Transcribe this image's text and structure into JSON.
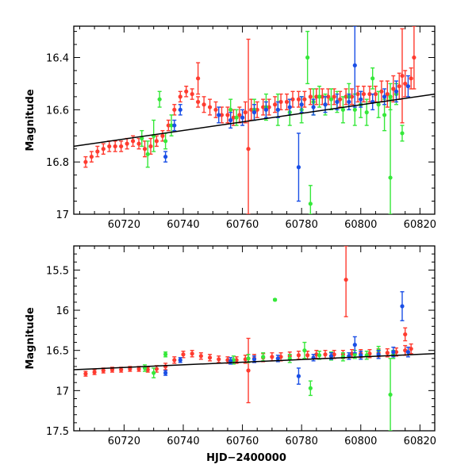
{
  "chart_data": [
    {
      "type": "scatter",
      "panel": "top",
      "title": "",
      "xlabel": "",
      "ylabel": "Magnitude",
      "xlim": [
        60703,
        60825
      ],
      "ylim": [
        17.0,
        16.28
      ],
      "y_inverted": true,
      "grid": false,
      "x_ticks": [
        60720,
        60740,
        60760,
        60780,
        60800,
        60820
      ],
      "y_ticks": [
        16.4,
        16.6,
        16.8,
        17.0
      ],
      "y_tick_labels": [
        "16.4",
        "16.6",
        "16.8",
        "17"
      ],
      "fit_line": {
        "x": [
          60703,
          60825
        ],
        "y": [
          16.74,
          16.54
        ],
        "color": "#000000"
      },
      "series": [
        {
          "color": "#ff3b2f",
          "x": [
            60707,
            60709,
            60711,
            60713,
            60715,
            60717,
            60719,
            60721,
            60723,
            60725,
            60727,
            60729,
            60731,
            60733,
            60735,
            60737,
            60739,
            60741,
            60743,
            60745,
            60747,
            60749,
            60751,
            60753,
            60755,
            60757,
            60759,
            60761,
            60763,
            60765,
            60767,
            60769,
            60771,
            60773,
            60775,
            60777,
            60779,
            60781,
            60783,
            60785,
            60787,
            60789,
            60791,
            60793,
            60795,
            60797,
            60799,
            60801,
            60803,
            60805,
            60807,
            60809,
            60811,
            60813,
            60815,
            60817
          ],
          "y": [
            16.8,
            16.78,
            16.76,
            16.75,
            16.74,
            16.74,
            16.74,
            16.73,
            16.72,
            16.73,
            16.75,
            16.74,
            16.72,
            16.7,
            16.66,
            16.6,
            16.55,
            16.53,
            16.54,
            16.57,
            16.58,
            16.59,
            16.6,
            16.62,
            16.62,
            16.63,
            16.62,
            16.61,
            16.6,
            16.6,
            16.59,
            16.59,
            16.58,
            16.57,
            16.57,
            16.56,
            16.56,
            16.56,
            16.55,
            16.55,
            16.55,
            16.55,
            16.55,
            16.56,
            16.55,
            16.55,
            16.54,
            16.54,
            16.54,
            16.54,
            16.53,
            16.54,
            16.52,
            16.51,
            16.5,
            16.48
          ],
          "yerr": [
            0.02,
            0.02,
            0.02,
            0.02,
            0.02,
            0.02,
            0.02,
            0.02,
            0.02,
            0.02,
            0.03,
            0.03,
            0.02,
            0.02,
            0.02,
            0.02,
            0.02,
            0.02,
            0.02,
            0.02,
            0.03,
            0.03,
            0.03,
            0.03,
            0.03,
            0.03,
            0.03,
            0.04,
            0.04,
            0.03,
            0.03,
            0.03,
            0.03,
            0.03,
            0.03,
            0.03,
            0.03,
            0.03,
            0.03,
            0.03,
            0.03,
            0.03,
            0.03,
            0.03,
            0.03,
            0.03,
            0.03,
            0.03,
            0.03,
            0.03,
            0.04,
            0.05,
            0.05,
            0.05,
            0.05,
            0.04
          ]
        },
        {
          "color": "#ff3b2f",
          "x": [
            60745,
            60762,
            60814,
            60818
          ],
          "y": [
            16.48,
            16.75,
            16.47,
            16.4
          ],
          "yerr": [
            0.06,
            0.42,
            0.18,
            0.12
          ]
        },
        {
          "color": "#36e83a",
          "x": [
            60726,
            60728,
            60730,
            60732,
            60734,
            60736,
            60756,
            60758,
            60764,
            60768,
            60772,
            60776,
            60780,
            60782,
            60784,
            60786,
            60788,
            60790,
            60792,
            60794,
            60796,
            60798,
            60800,
            60802,
            60804,
            60806,
            60808,
            60810,
            60812,
            60814
          ],
          "y": [
            16.71,
            16.77,
            16.7,
            16.56,
            16.72,
            16.66,
            16.6,
            16.63,
            16.6,
            16.59,
            16.6,
            16.61,
            16.6,
            16.4,
            16.57,
            16.55,
            16.58,
            16.56,
            16.57,
            16.6,
            16.55,
            16.6,
            16.58,
            16.61,
            16.48,
            16.58,
            16.62,
            16.55,
            16.54,
            16.69
          ],
          "yerr": [
            0.03,
            0.05,
            0.06,
            0.03,
            0.03,
            0.04,
            0.04,
            0.03,
            0.04,
            0.05,
            0.06,
            0.05,
            0.05,
            0.1,
            0.05,
            0.04,
            0.04,
            0.04,
            0.04,
            0.05,
            0.05,
            0.06,
            0.05,
            0.05,
            0.04,
            0.05,
            0.06,
            0.05,
            0.04,
            0.03
          ]
        },
        {
          "color": "#36e83a",
          "x": [
            60783,
            60810
          ],
          "y": [
            16.96,
            16.86
          ],
          "yerr": [
            0.07,
            0.3
          ]
        },
        {
          "color": "#1a4fe6",
          "x": [
            60734,
            60737,
            60739,
            60752,
            60756,
            60760,
            60764,
            60768,
            60772,
            60776,
            60780,
            60784,
            60788,
            60792,
            60796,
            60800,
            60804,
            60808,
            60812,
            60816
          ],
          "y": [
            16.78,
            16.66,
            16.6,
            16.62,
            16.64,
            16.63,
            16.61,
            16.6,
            16.6,
            16.59,
            16.58,
            16.59,
            16.58,
            16.57,
            16.57,
            16.56,
            16.57,
            16.55,
            16.53,
            16.51
          ],
          "yerr": [
            0.02,
            0.02,
            0.02,
            0.03,
            0.03,
            0.03,
            0.03,
            0.03,
            0.03,
            0.03,
            0.03,
            0.03,
            0.03,
            0.03,
            0.03,
            0.03,
            0.03,
            0.03,
            0.04,
            0.04
          ]
        },
        {
          "color": "#1a4fe6",
          "x": [
            60779,
            60798
          ],
          "y": [
            16.82,
            16.43
          ],
          "yerr": [
            0.13,
            0.16
          ]
        }
      ]
    },
    {
      "type": "scatter",
      "panel": "bottom",
      "title": "",
      "xlabel": "HJD−2400000",
      "ylabel": "Magnitude",
      "xlim": [
        60703,
        60825
      ],
      "ylim": [
        17.5,
        15.2
      ],
      "y_inverted": true,
      "grid": false,
      "x_ticks": [
        60720,
        60740,
        60760,
        60780,
        60800,
        60820
      ],
      "y_ticks": [
        15.5,
        16.0,
        16.5,
        17.0,
        17.5
      ],
      "y_tick_labels": [
        "15.5",
        "16",
        "16.5",
        "17",
        "17.5"
      ],
      "fit_line": {
        "x": [
          60703,
          60825
        ],
        "y": [
          16.74,
          16.54
        ],
        "color": "#000000"
      },
      "series": [
        {
          "color": "#ff3b2f",
          "x": [
            60707,
            60710,
            60713,
            60716,
            60719,
            60722,
            60725,
            60728,
            60731,
            60734,
            60737,
            60740,
            60743,
            60746,
            60749,
            60752,
            60755,
            60758,
            60761,
            60764,
            60767,
            60770,
            60773,
            60776,
            60779,
            60782,
            60785,
            60788,
            60791,
            60794,
            60797,
            60800,
            60803,
            60806,
            60809,
            60812,
            60815,
            60817
          ],
          "y": [
            16.79,
            16.77,
            16.75,
            16.74,
            16.74,
            16.73,
            16.73,
            16.74,
            16.73,
            16.7,
            16.62,
            16.55,
            16.54,
            16.57,
            16.59,
            16.61,
            16.62,
            16.62,
            16.61,
            16.6,
            16.59,
            16.58,
            16.58,
            16.57,
            16.56,
            16.56,
            16.55,
            16.55,
            16.55,
            16.55,
            16.54,
            16.54,
            16.54,
            16.53,
            16.53,
            16.52,
            16.5,
            16.48
          ],
          "yerr": [
            0.03,
            0.03,
            0.03,
            0.03,
            0.03,
            0.03,
            0.03,
            0.03,
            0.04,
            0.04,
            0.04,
            0.04,
            0.04,
            0.04,
            0.04,
            0.04,
            0.04,
            0.04,
            0.05,
            0.05,
            0.05,
            0.05,
            0.05,
            0.05,
            0.05,
            0.05,
            0.05,
            0.05,
            0.05,
            0.05,
            0.05,
            0.05,
            0.05,
            0.05,
            0.05,
            0.05,
            0.06,
            0.06
          ]
        },
        {
          "color": "#ff3b2f",
          "x": [
            60762,
            60795,
            60815
          ],
          "y": [
            16.75,
            15.62,
            16.3
          ],
          "yerr": [
            0.4,
            0.46,
            0.08
          ]
        },
        {
          "color": "#36e83a",
          "x": [
            60727,
            60730,
            60734,
            60757,
            60762,
            60767,
            60771,
            60776,
            60781,
            60783,
            60786,
            60790,
            60794,
            60798,
            60802,
            60806,
            60811
          ],
          "y": [
            16.72,
            16.78,
            16.55,
            16.62,
            16.6,
            16.58,
            15.87,
            16.6,
            16.5,
            16.97,
            16.56,
            16.57,
            16.58,
            16.55,
            16.56,
            16.5,
            16.55
          ],
          "yerr": [
            0.04,
            0.06,
            0.03,
            0.05,
            0.05,
            0.05,
            0.01,
            0.05,
            0.1,
            0.09,
            0.05,
            0.05,
            0.05,
            0.05,
            0.05,
            0.05,
            0.05
          ]
        },
        {
          "color": "#36e83a",
          "x": [
            60810
          ],
          "y": [
            17.05
          ],
          "yerr": [
            0.45
          ]
        },
        {
          "color": "#1a4fe6",
          "x": [
            60734,
            60739,
            60756,
            60764,
            60772,
            60779,
            60784,
            60790,
            60796,
            60800,
            60806,
            60811,
            60816
          ],
          "y": [
            16.78,
            16.62,
            16.63,
            16.61,
            16.6,
            16.82,
            16.59,
            16.57,
            16.57,
            16.56,
            16.55,
            16.52,
            16.52
          ],
          "yerr": [
            0.03,
            0.03,
            0.04,
            0.04,
            0.04,
            0.1,
            0.04,
            0.04,
            0.04,
            0.05,
            0.05,
            0.06,
            0.06
          ]
        },
        {
          "color": "#1a4fe6",
          "x": [
            60798,
            60814
          ],
          "y": [
            16.43,
            15.95
          ],
          "yerr": [
            0.1,
            0.18
          ]
        }
      ]
    }
  ]
}
